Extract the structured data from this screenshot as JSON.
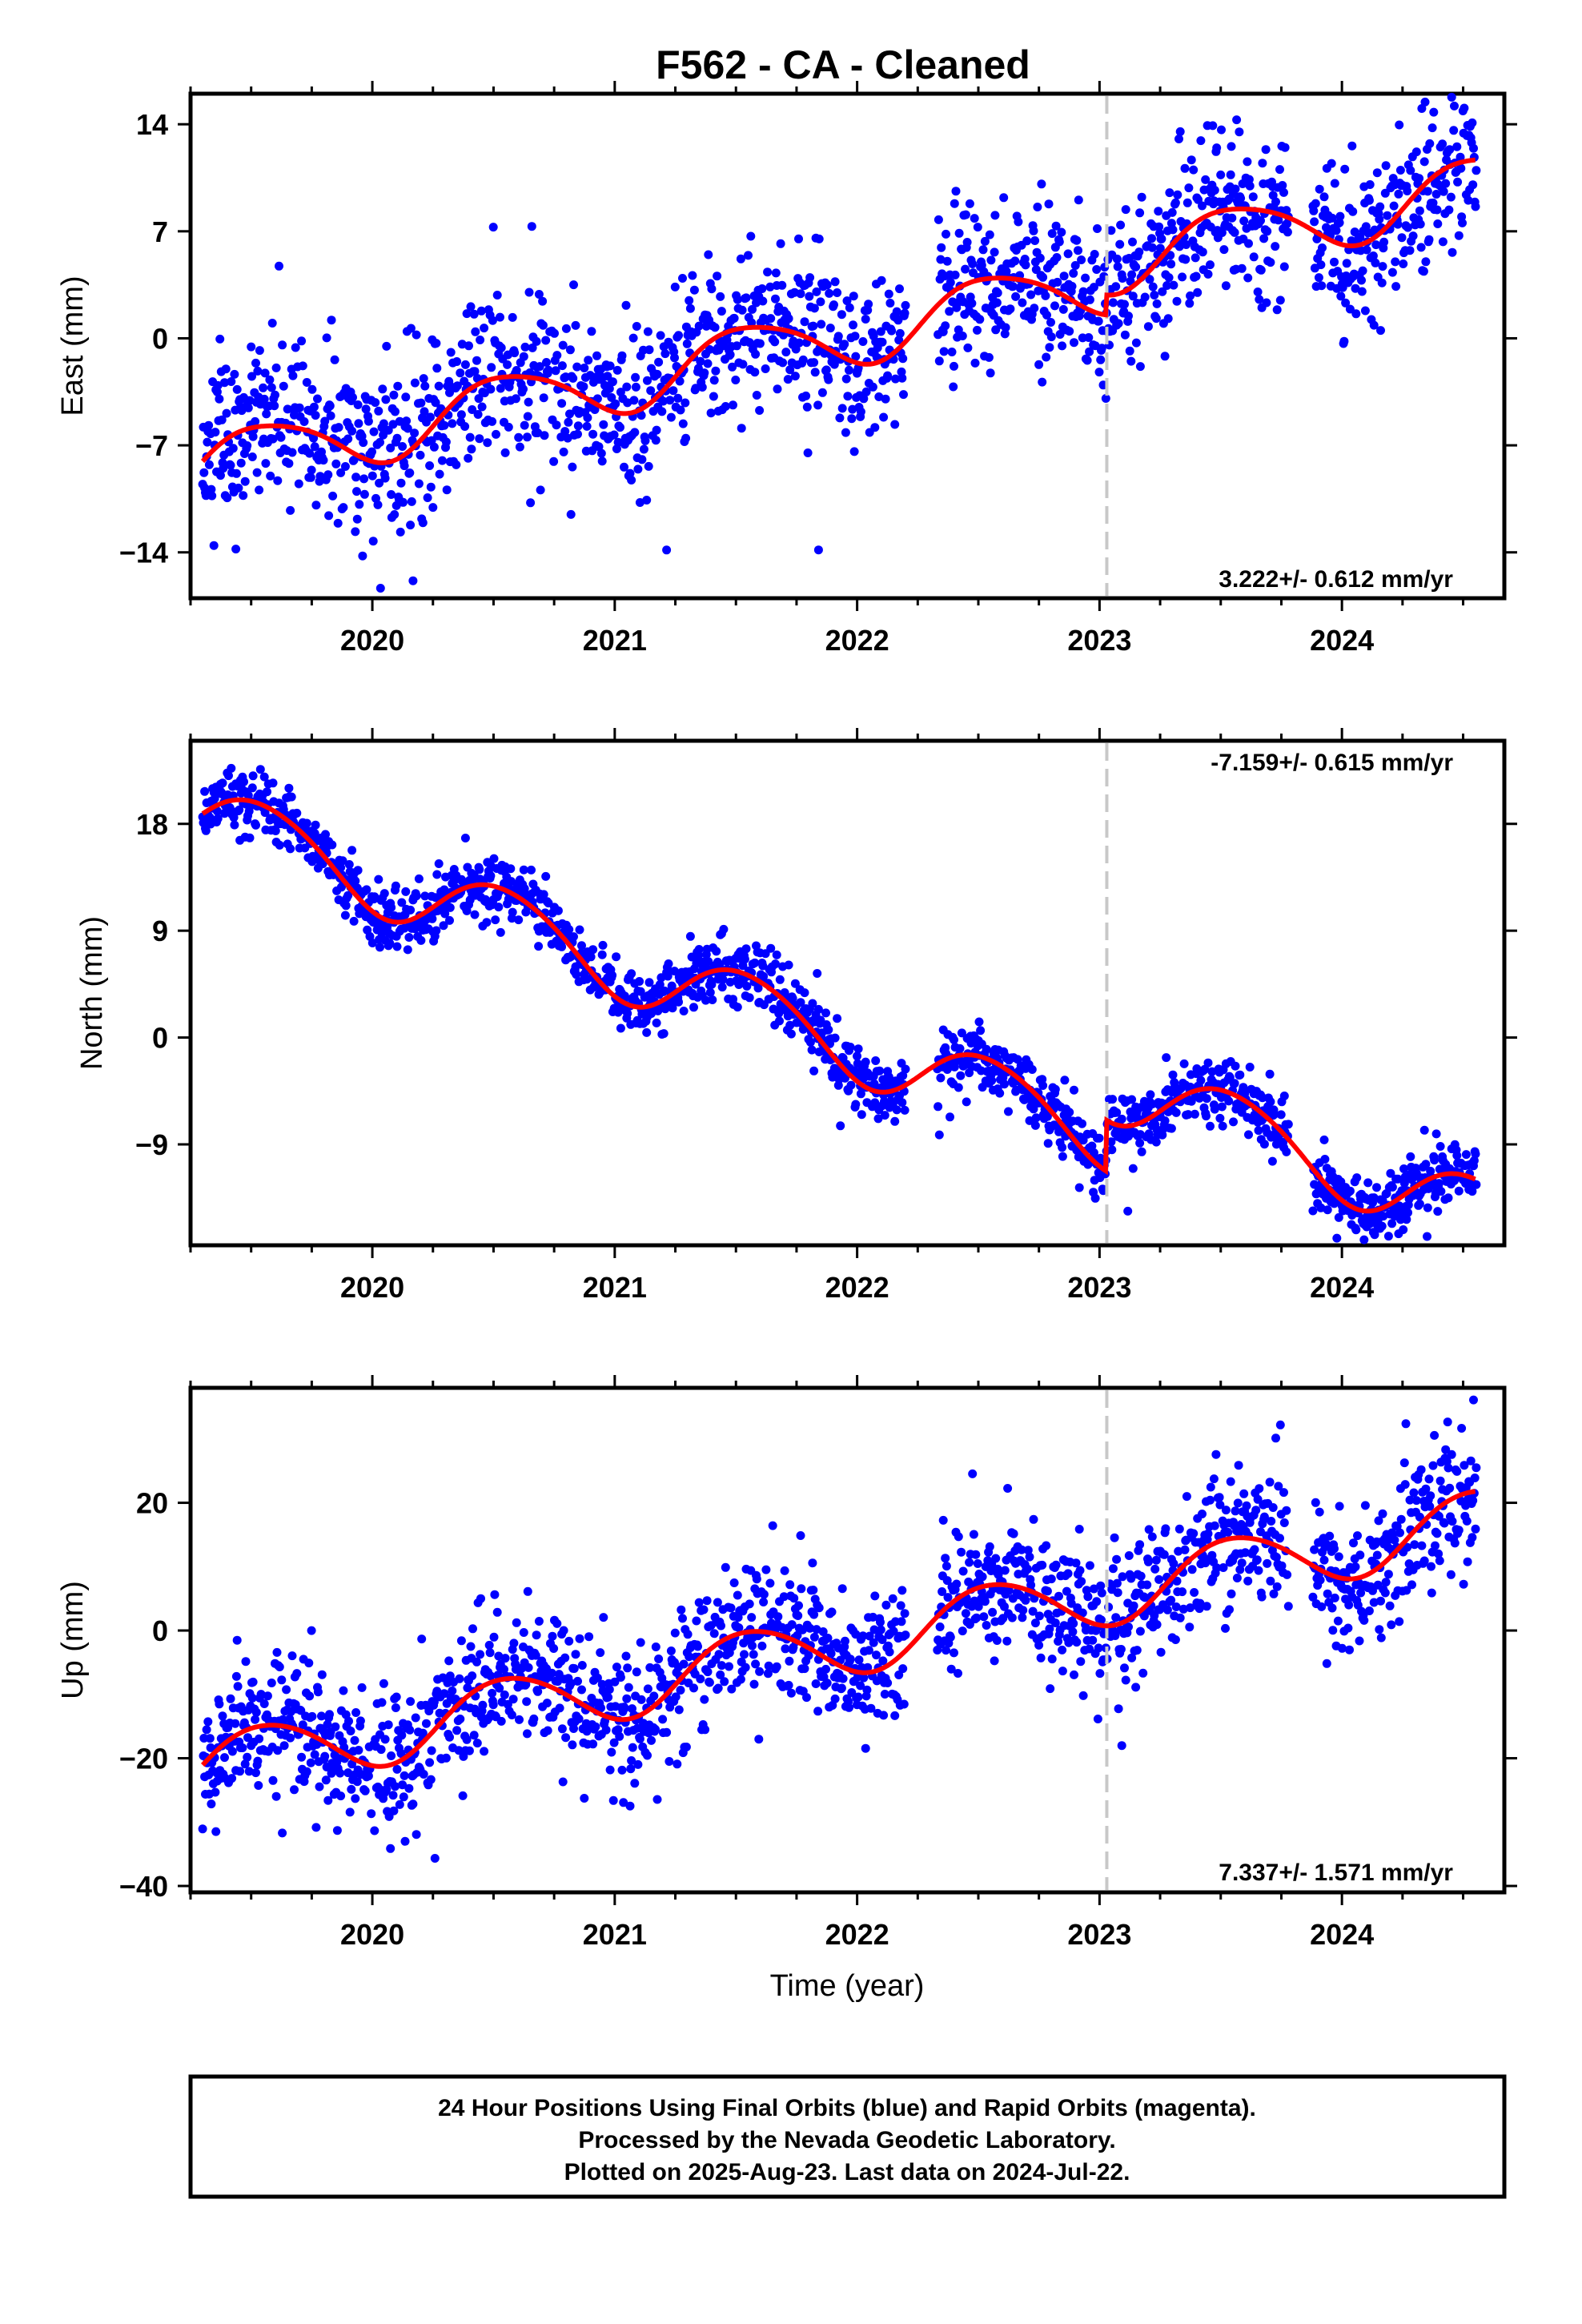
{
  "title": "F562  - CA - Cleaned",
  "xlabel": "Time (year)",
  "footer": [
    "24 Hour Positions Using Final Orbits (blue) and Rapid Orbits (magenta).",
    "Processed by the Nevada Geodetic Laboratory.",
    "Plotted on 2025-Aug-23. Last data on 2024-Jul-22."
  ],
  "colors": {
    "points": "#0000ff",
    "fit": "#ff0000",
    "event_line": "#c8c8c8"
  },
  "chart_data": [
    {
      "type": "scatter",
      "component": "east",
      "ylabel": "East (mm)",
      "rate_label": "3.222+/- 0.612 mm/yr",
      "xlim": [
        2019.25,
        2024.67
      ],
      "ylim": [
        -17,
        16
      ],
      "yticks": [
        -14,
        -7,
        0,
        7,
        14
      ],
      "xticks": [
        2020,
        2021,
        2022,
        2023,
        2024
      ],
      "event_line_x": 2023.03,
      "rate": 3.222,
      "x_start": 2019.3,
      "y_start": -8.3,
      "annual_amp": 2.0,
      "annual_phase": 0.3,
      "semiannual_amp": 0.3,
      "noise": 2.7,
      "step": {
        "x": 2023.03,
        "size": 1.3
      },
      "gaps": [
        [
          2022.2,
          2022.33
        ],
        [
          2023.78,
          2023.88
        ]
      ]
    },
    {
      "type": "scatter",
      "component": "north",
      "ylabel": "North (mm)",
      "rate_label": "-7.159+/- 0.615 mm/yr",
      "xlim": [
        2019.25,
        2024.67
      ],
      "ylim": [
        -17.5,
        25
      ],
      "yticks": [
        -9,
        0,
        9,
        18
      ],
      "xticks": [
        2020,
        2021,
        2022,
        2023,
        2024
      ],
      "event_line_x": 2023.03,
      "rate": -7.159,
      "x_start": 2019.3,
      "y_start": 18.6,
      "annual_amp": 3.0,
      "annual_phase": 0.25,
      "semiannual_amp": 0.3,
      "noise": 1.3,
      "step": {
        "x": 2023.03,
        "size": 4.3
      },
      "gaps": [
        [
          2022.2,
          2022.33
        ],
        [
          2023.78,
          2023.88
        ]
      ]
    },
    {
      "type": "scatter",
      "component": "up",
      "ylabel": "Up (mm)",
      "rate_label": "7.337+/- 1.571 mm/yr",
      "xlim": [
        2019.25,
        2024.67
      ],
      "ylim": [
        -41,
        38
      ],
      "yticks": [
        -40,
        -20,
        0,
        20
      ],
      "xticks": [
        2020,
        2021,
        2022,
        2023,
        2024
      ],
      "event_line_x": 2023.03,
      "rate": 7.337,
      "x_start": 2019.3,
      "y_start": -21.4,
      "annual_amp": 5.0,
      "annual_phase": 0.05,
      "semiannual_amp": 0.4,
      "noise": 5.5,
      "step": {
        "x": 2023.03,
        "size": 0
      },
      "gaps": [
        [
          2022.2,
          2022.33
        ],
        [
          2023.78,
          2023.88
        ]
      ]
    }
  ]
}
